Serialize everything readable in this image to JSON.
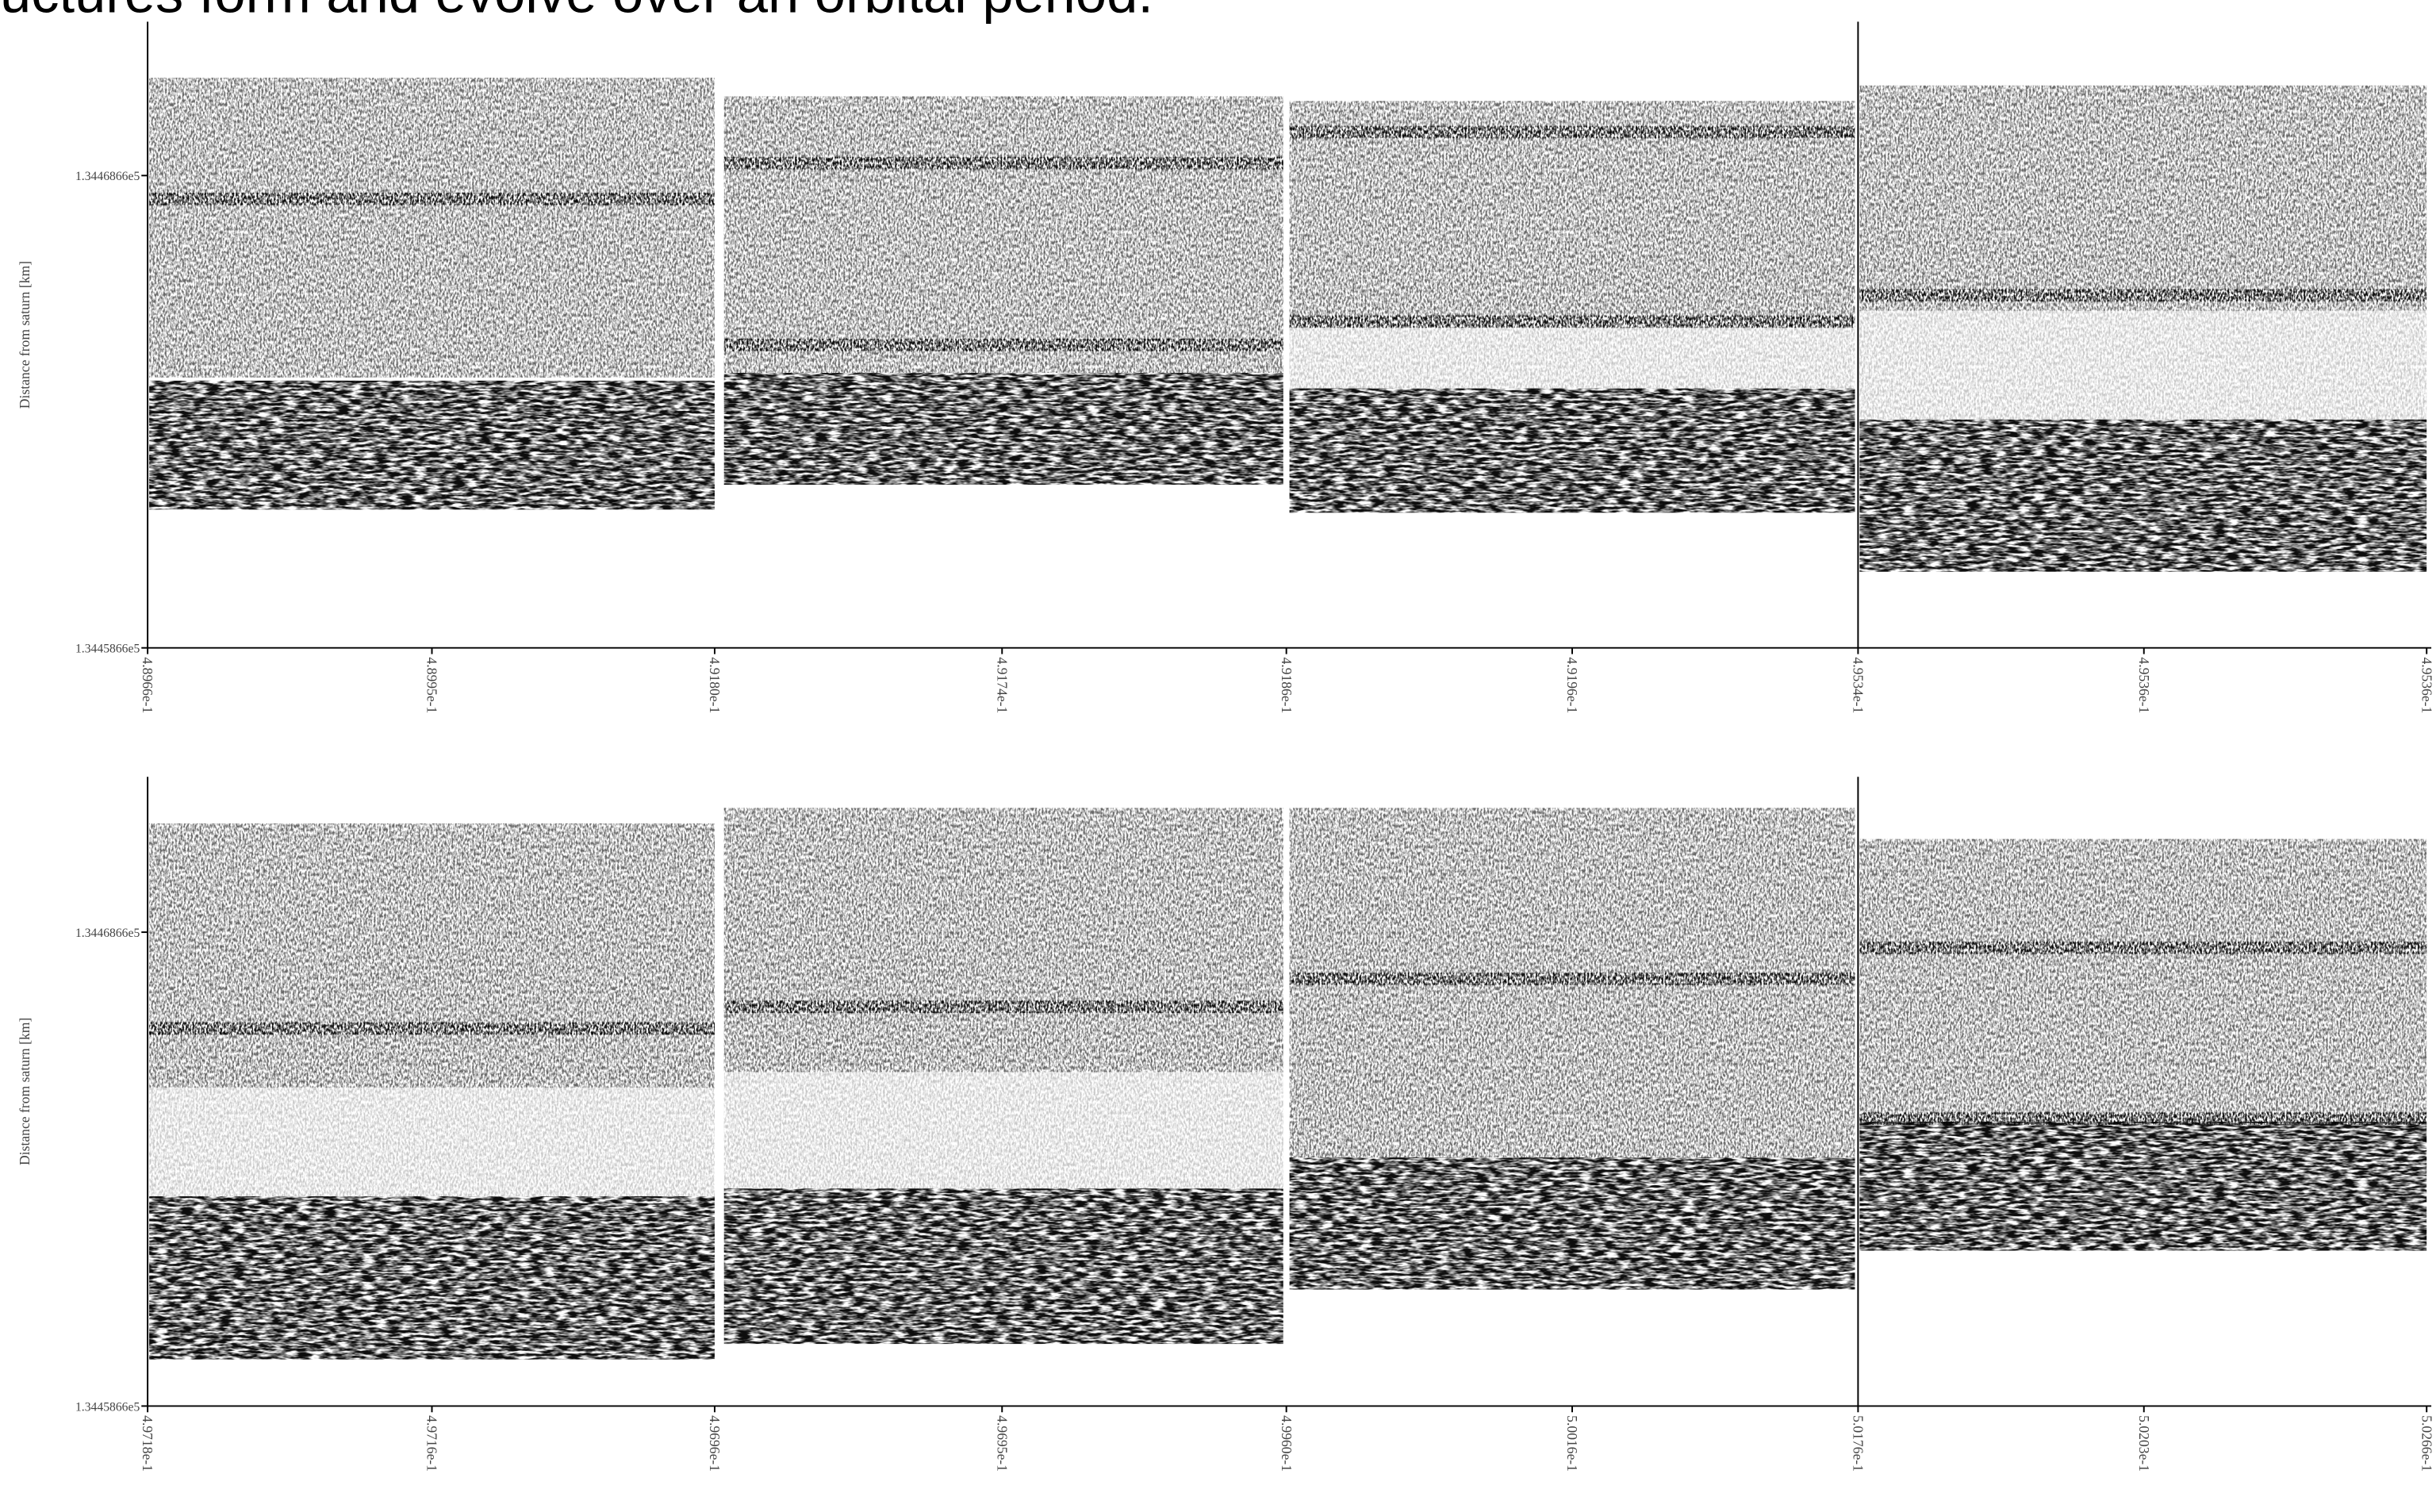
{
  "header": {
    "title": "uctures form and evolve over an orbital period."
  },
  "figure": {
    "rows": [
      {
        "y_axis_label": "Distance from saturn [km]",
        "y_ticks": [
          "1.3446866e5",
          "1.3445866e5"
        ],
        "x_ticks": [
          "4.8966e-1",
          "4.8995e-1",
          "4.9180e-1",
          "4.9174e-1",
          "4.9186e-1",
          "4.9196e-1",
          "4.9534e-1",
          "4.9536e-1",
          "4.9536e-1"
        ]
      },
      {
        "y_axis_label": "Distance from saturn [km]",
        "y_ticks": [
          "1.3446866e5",
          "1.3445866e5"
        ],
        "x_ticks": [
          "4.9718e-1",
          "4.9716e-1",
          "4.9696e-1",
          "4.9695e-1",
          "4.9960e-1",
          "5.0016e-1",
          "5.0176e-1",
          "5.0203e-1",
          "5.0266e-1"
        ]
      }
    ]
  }
}
